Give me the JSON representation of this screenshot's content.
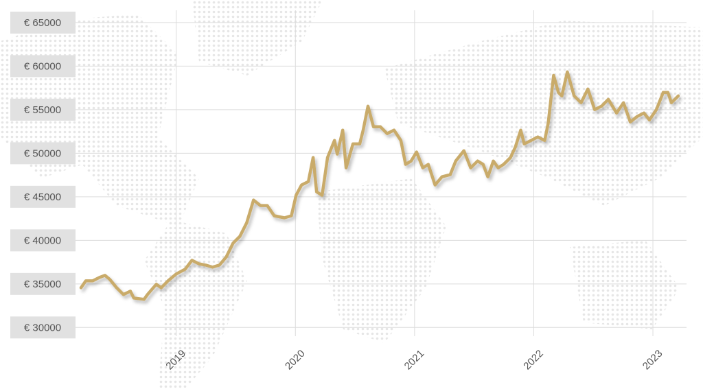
{
  "chart_data": {
    "type": "line",
    "x": [
      2018.201,
      2018.241,
      2018.299,
      2018.356,
      2018.402,
      2018.443,
      2018.5,
      2018.557,
      2018.615,
      2018.644,
      2018.73,
      2018.759,
      2018.833,
      2018.874,
      2018.931,
      2019,
      2019.075,
      2019.132,
      2019.19,
      2019.247,
      2019.305,
      2019.362,
      2019.42,
      2019.477,
      2019.534,
      2019.592,
      2019.649,
      2019.707,
      2019.764,
      2019.822,
      2019.908,
      2019.966,
      2020.006,
      2020.052,
      2020.109,
      2020.149,
      2020.178,
      2020.224,
      2020.27,
      2020.328,
      2020.351,
      2020.397,
      2020.425,
      2020.483,
      2020.54,
      2020.569,
      2020.609,
      2020.655,
      2020.713,
      2020.77,
      2020.828,
      2020.885,
      2020.925,
      2020.971,
      2021.017,
      2021.069,
      2021.115,
      2021.172,
      2021.23,
      2021.299,
      2021.345,
      2021.414,
      2021.471,
      2021.529,
      2021.575,
      2021.615,
      2021.661,
      2021.701,
      2021.747,
      2021.805,
      2021.845,
      2021.891,
      2021.92,
      2021.977,
      2022.034,
      2022.092,
      2022.121,
      2022.167,
      2022.207,
      2022.236,
      2022.282,
      2022.339,
      2022.397,
      2022.454,
      2022.511,
      2022.569,
      2022.626,
      2022.695,
      2022.753,
      2022.81,
      2022.868,
      2022.925,
      2022.971,
      2023.029,
      2023.086,
      2023.126,
      2023.155,
      2023.213
    ],
    "values": [
      34560,
      35350,
      35350,
      35740,
      35980,
      35510,
      34560,
      33780,
      34170,
      33380,
      33230,
      33780,
      34960,
      34560,
      35350,
      36140,
      36690,
      37710,
      37310,
      37160,
      36920,
      37160,
      38100,
      39680,
      40460,
      42030,
      44630,
      44000,
      44000,
      42820,
      42590,
      42820,
      45180,
      46360,
      46750,
      49510,
      45570,
      45180,
      49510,
      51470,
      49900,
      52650,
      48330,
      51080,
      51080,
      52650,
      55400,
      53050,
      53050,
      52260,
      52650,
      51470,
      48720,
      49110,
      50140,
      48330,
      48720,
      46360,
      47300,
      47540,
      49110,
      50290,
      48330,
      49110,
      48720,
      47300,
      49110,
      48330,
      48720,
      49510,
      50690,
      52650,
      51080,
      51470,
      51870,
      51470,
      53440,
      58940,
      56980,
      56580,
      59340,
      56580,
      55800,
      57370,
      55010,
      55400,
      56190,
      54620,
      55800,
      53600,
      54220,
      54620,
      53830,
      55010,
      56980,
      56980,
      55800,
      56580
    ],
    "color": "#c9ab6b",
    "xlim": [
      2018.155,
      2023.282
    ],
    "xticks": [
      2019,
      2020,
      2021,
      2022,
      2023
    ],
    "ylim": [
      29000,
      67200
    ],
    "yticks": [
      {
        "value": 30000,
        "label": "€ 30000"
      },
      {
        "value": 35000,
        "label": "€ 35000"
      },
      {
        "value": 40000,
        "label": "€ 40000"
      },
      {
        "value": 45000,
        "label": "€ 45000"
      },
      {
        "value": 50000,
        "label": "€ 50000"
      },
      {
        "value": 55000,
        "label": "€ 55000"
      },
      {
        "value": 60000,
        "label": "€ 60000"
      },
      {
        "value": 65000,
        "label": "€ 65000"
      }
    ],
    "grid": true
  }
}
